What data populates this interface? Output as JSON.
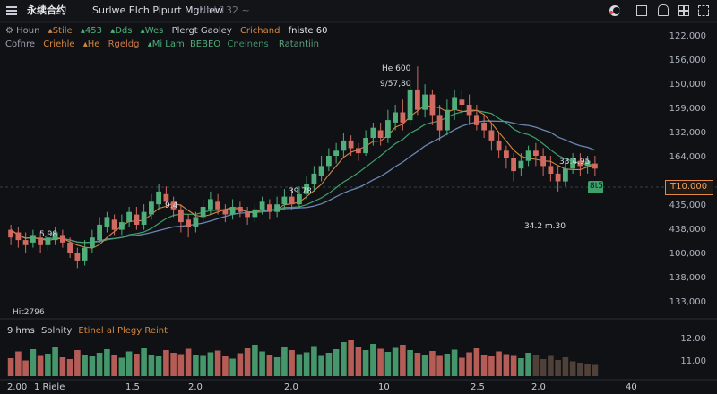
{
  "header": {
    "menu_icon": "hamburger-icon",
    "logo_text": "永续合约",
    "symbol": "Surlwe Elch Pipurt Mgrilew",
    "subtitle": "Ntd 132 ~",
    "right_icons": [
      "half-moon-icon",
      "square-icon",
      "bell-icon",
      "grid-icon",
      "fullscreen-icon"
    ]
  },
  "indicators_row1": [
    {
      "text": "Houn",
      "icon": "gear-icon",
      "color": "#9aa1ab"
    },
    {
      "text": "Stile",
      "icon": "triangle-icon",
      "color": "#c9834b"
    },
    {
      "text": "453",
      "icon": "triangle-icon",
      "color": "#4fae7a"
    },
    {
      "text": "Dds",
      "icon": "triangle-icon",
      "color": "#4fae7a"
    },
    {
      "text": "Wes",
      "icon": "triangle-icon",
      "color": "#4fae7a"
    },
    {
      "text": "Plergt Gaoley",
      "color": "#c8ccd2"
    },
    {
      "text": "Crichand",
      "color": "#d4873f"
    },
    {
      "text": "fniste 60",
      "color": "#e8e8e8"
    }
  ],
  "indicators_row2": [
    {
      "text": "Cofnre",
      "color": "#9aa1ab"
    },
    {
      "text": "Criehle",
      "color": "#d4873f"
    },
    {
      "text": "He",
      "icon": "triangle-icon",
      "color": "#d4873f"
    },
    {
      "text": "Rgeldg",
      "color": "#c97a4a"
    },
    {
      "text": "Mi Lam",
      "icon": "triangle-icon",
      "color": "#4fae7a"
    },
    {
      "text": "BEBEO",
      "color": "#4fae7a"
    },
    {
      "text": "Cnelnens",
      "color": "#3f8f63"
    },
    {
      "text": "Ratantiin",
      "color": "#5f9f7f"
    }
  ],
  "price_axis": [
    "122.000",
    "156,000",
    "150,000",
    "159,000",
    "132,000",
    "164,000",
    "435,000",
    "438,000",
    "100,000",
    "138,000",
    "133,000"
  ],
  "current_price": {
    "label": "T10.000",
    "color": "#e28a4a"
  },
  "annotations": {
    "peak_top": "He 600",
    "peak_value": "9/57,80",
    "left_low": "5,98",
    "mid_low": "9.4",
    "mid_price": "39.78",
    "right_high": "33.4.95",
    "right_low": "34.2 m.30",
    "marker_badge": "8t5",
    "bottom_left": "Hit2796"
  },
  "volume_panel": {
    "label_a": "9 hms",
    "label_b": "Solnity",
    "label_c": "Etinel al Plegy Reint",
    "axis": [
      "12.00",
      "11.00"
    ]
  },
  "x_axis": [
    "2.00",
    "1 Riele",
    "1.5",
    "2.0",
    "2.0",
    "10",
    "2.5",
    "2.0",
    "40"
  ],
  "colors": {
    "up": "#4fae7a",
    "down": "#d16a60",
    "background": "#0f1115",
    "ma_orange": "#d4873f",
    "ma_green": "#3fa06c",
    "ma_blue": "#6b86b5"
  },
  "chart_data": {
    "type": "candlestick",
    "ylim": [
      0,
      100
    ],
    "candles": [
      [
        28,
        31,
        25,
        33,
        "down"
      ],
      [
        30,
        27,
        24,
        32,
        "down"
      ],
      [
        27,
        25,
        22,
        30,
        "down"
      ],
      [
        26,
        29,
        24,
        31,
        "up"
      ],
      [
        28,
        25,
        22,
        30,
        "down"
      ],
      [
        25,
        28,
        23,
        30,
        "up"
      ],
      [
        27,
        30,
        25,
        32,
        "up"
      ],
      [
        29,
        26,
        24,
        31,
        "down"
      ],
      [
        26,
        22,
        20,
        28,
        "down"
      ],
      [
        22,
        19,
        16,
        24,
        "down"
      ],
      [
        19,
        24,
        17,
        27,
        "up"
      ],
      [
        24,
        28,
        22,
        31,
        "up"
      ],
      [
        27,
        33,
        26,
        36,
        "up"
      ],
      [
        32,
        36,
        30,
        38,
        "up"
      ],
      [
        35,
        31,
        29,
        37,
        "down"
      ],
      [
        31,
        34,
        29,
        37,
        "up"
      ],
      [
        34,
        38,
        32,
        40,
        "up"
      ],
      [
        37,
        33,
        31,
        40,
        "down"
      ],
      [
        33,
        38,
        31,
        41,
        "up"
      ],
      [
        37,
        42,
        35,
        45,
        "up"
      ],
      [
        41,
        46,
        39,
        49,
        "up"
      ],
      [
        45,
        42,
        40,
        48,
        "down"
      ],
      [
        42,
        39,
        36,
        44,
        "down"
      ],
      [
        39,
        34,
        30,
        41,
        "down"
      ],
      [
        35,
        32,
        28,
        37,
        "down"
      ],
      [
        32,
        36,
        30,
        38,
        "up"
      ],
      [
        36,
        40,
        34,
        43,
        "up"
      ],
      [
        39,
        43,
        37,
        46,
        "up"
      ],
      [
        42,
        39,
        37,
        45,
        "down"
      ],
      [
        39,
        37,
        34,
        41,
        "down"
      ],
      [
        37,
        40,
        35,
        43,
        "up"
      ],
      [
        40,
        38,
        36,
        42,
        "down"
      ],
      [
        38,
        36,
        33,
        40,
        "down"
      ],
      [
        36,
        39,
        34,
        41,
        "up"
      ],
      [
        39,
        42,
        37,
        44,
        "up"
      ],
      [
        41,
        38,
        35,
        43,
        "down"
      ],
      [
        38,
        41,
        36,
        44,
        "up"
      ],
      [
        41,
        44,
        39,
        47,
        "up"
      ],
      [
        44,
        41,
        39,
        47,
        "down"
      ],
      [
        41,
        45,
        40,
        48,
        "up"
      ],
      [
        45,
        49,
        43,
        52,
        "up"
      ],
      [
        49,
        53,
        46,
        56,
        "up"
      ],
      [
        52,
        56,
        50,
        60,
        "up"
      ],
      [
        56,
        60,
        54,
        63,
        "up"
      ],
      [
        60,
        62,
        57,
        65,
        "up"
      ],
      [
        62,
        66,
        59,
        69,
        "up"
      ],
      [
        66,
        63,
        60,
        68,
        "down"
      ],
      [
        63,
        61,
        58,
        65,
        "down"
      ],
      [
        61,
        67,
        60,
        70,
        "up"
      ],
      [
        67,
        71,
        64,
        73,
        "up"
      ],
      [
        70,
        67,
        64,
        73,
        "down"
      ],
      [
        67,
        74,
        65,
        78,
        "up"
      ],
      [
        73,
        77,
        70,
        80,
        "up"
      ],
      [
        77,
        73,
        70,
        82,
        "down"
      ],
      [
        74,
        86,
        72,
        90,
        "up"
      ],
      [
        86,
        78,
        76,
        95,
        "down"
      ],
      [
        78,
        84,
        75,
        88,
        "up"
      ],
      [
        84,
        76,
        72,
        86,
        "down"
      ],
      [
        76,
        70,
        66,
        80,
        "down"
      ],
      [
        70,
        78,
        68,
        82,
        "up"
      ],
      [
        78,
        83,
        74,
        86,
        "up"
      ],
      [
        82,
        80,
        76,
        86,
        "down"
      ],
      [
        80,
        76,
        72,
        84,
        "down"
      ],
      [
        76,
        72,
        70,
        80,
        "down"
      ],
      [
        73,
        70,
        67,
        76,
        "down"
      ],
      [
        70,
        66,
        62,
        73,
        "down"
      ],
      [
        66,
        62,
        59,
        69,
        "down"
      ],
      [
        62,
        59,
        55,
        64,
        "down"
      ],
      [
        59,
        54,
        50,
        61,
        "down"
      ],
      [
        55,
        58,
        52,
        61,
        "up"
      ],
      [
        58,
        62,
        56,
        64,
        "up"
      ],
      [
        62,
        60,
        56,
        65,
        "down"
      ],
      [
        60,
        56,
        52,
        63,
        "down"
      ],
      [
        56,
        53,
        50,
        60,
        "down"
      ],
      [
        53,
        50,
        46,
        56,
        "down"
      ],
      [
        50,
        55,
        48,
        58,
        "up"
      ],
      [
        55,
        59,
        53,
        61,
        "up"
      ],
      [
        58,
        56,
        52,
        61,
        "down"
      ],
      [
        56,
        58,
        53,
        60,
        "up"
      ],
      [
        57,
        55,
        52,
        60,
        "down"
      ]
    ],
    "volume": [
      40,
      55,
      35,
      60,
      45,
      50,
      65,
      42,
      38,
      58,
      48,
      44,
      52,
      60,
      47,
      41,
      55,
      50,
      62,
      46,
      44,
      58,
      52,
      49,
      61,
      48,
      45,
      53,
      57,
      44,
      39,
      51,
      62,
      70,
      55,
      48,
      42,
      64,
      58,
      49,
      53,
      67,
      45,
      52,
      60,
      76,
      80,
      66,
      58,
      72,
      61,
      54,
      63,
      70,
      58,
      52,
      47,
      56,
      45,
      50,
      59,
      41,
      53,
      62,
      48,
      44,
      55,
      49,
      45,
      40,
      52,
      48,
      38,
      45,
      36,
      42,
      33,
      30,
      28,
      25
    ]
  }
}
